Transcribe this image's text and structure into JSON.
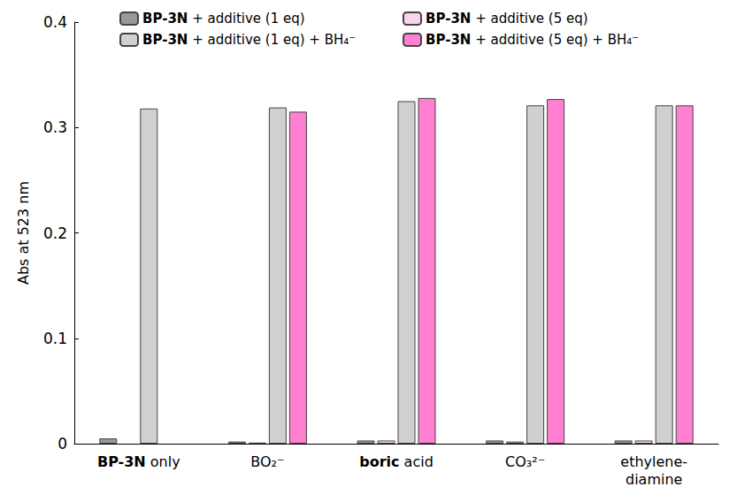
{
  "chart_data": {
    "type": "bar",
    "y_label": "Abs at 523 nm",
    "categories": [
      "BP-3N only",
      "BO₂⁻",
      "boric acid",
      "CO₃²⁻",
      "ethylene-diamine"
    ],
    "series": [
      {
        "name": "BP-3N + additive (1 eq)",
        "color": "#9a9a9a",
        "values": [
          0.005,
          0.002,
          0.003,
          0.003,
          0.003
        ]
      },
      {
        "name": "BP-3N + additive (5 eq)",
        "color": "#fbd3ea",
        "values": [
          null,
          0.001,
          0.003,
          0.002,
          0.003
        ]
      },
      {
        "name": "BP-3N + additive (1 eq) + BH₄⁻",
        "color": "#d0d0d0",
        "values": [
          0.318,
          0.319,
          0.325,
          0.321,
          0.321
        ]
      },
      {
        "name": "BP-3N + additive (5 eq) + BH₄⁻",
        "color": "#ff80d0",
        "values": [
          null,
          0.315,
          0.328,
          0.327,
          0.321
        ]
      }
    ],
    "ylim": [
      0,
      0.4
    ],
    "yticks": [
      0,
      0.1,
      0.2,
      0.3,
      0.4
    ],
    "grid": false,
    "legend": "top"
  }
}
